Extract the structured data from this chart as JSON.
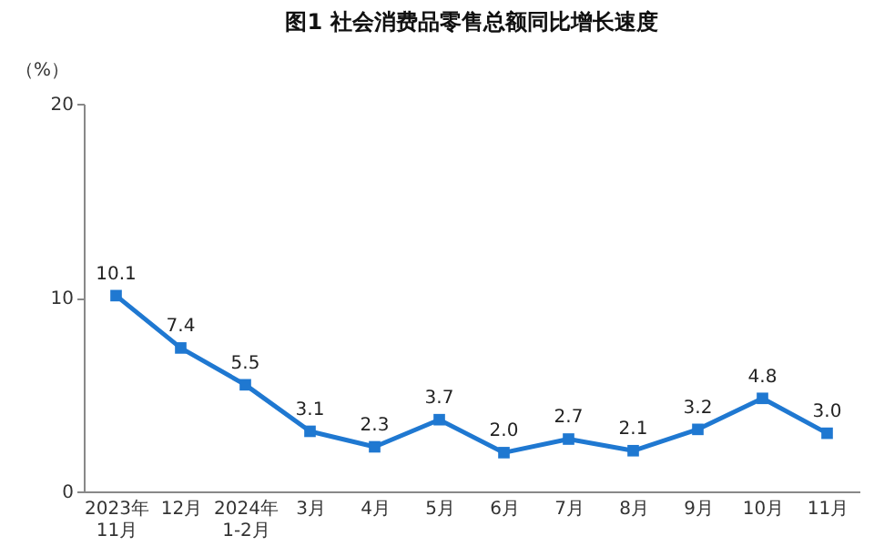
{
  "chart_data": {
    "type": "line",
    "title": "图1  社会消费品零售总额同比增长速度",
    "ylabel": "（%）",
    "categories": [
      "2023年\n11月",
      "12月",
      "2024年\n1-2月",
      "3月",
      "4月",
      "5月",
      "6月",
      "7月",
      "8月",
      "9月",
      "10月",
      "11月"
    ],
    "series": [
      {
        "color": "#1f78d1",
        "values": [
          10.1,
          7.4,
          5.5,
          3.1,
          2.3,
          3.7,
          2.0,
          2.7,
          2.1,
          3.2,
          4.8,
          3.0
        ],
        "value_labels": [
          "10.1",
          "7.4",
          "5.5",
          "3.1",
          "2.3",
          "3.7",
          "2.0",
          "2.7",
          "2.1",
          "3.2",
          "4.8",
          "3.0"
        ]
      }
    ],
    "ylim": [
      0,
      20
    ],
    "yticks": [
      0,
      10,
      20
    ],
    "grid": false,
    "legend": false,
    "marker": "square",
    "line_style": "solid"
  }
}
